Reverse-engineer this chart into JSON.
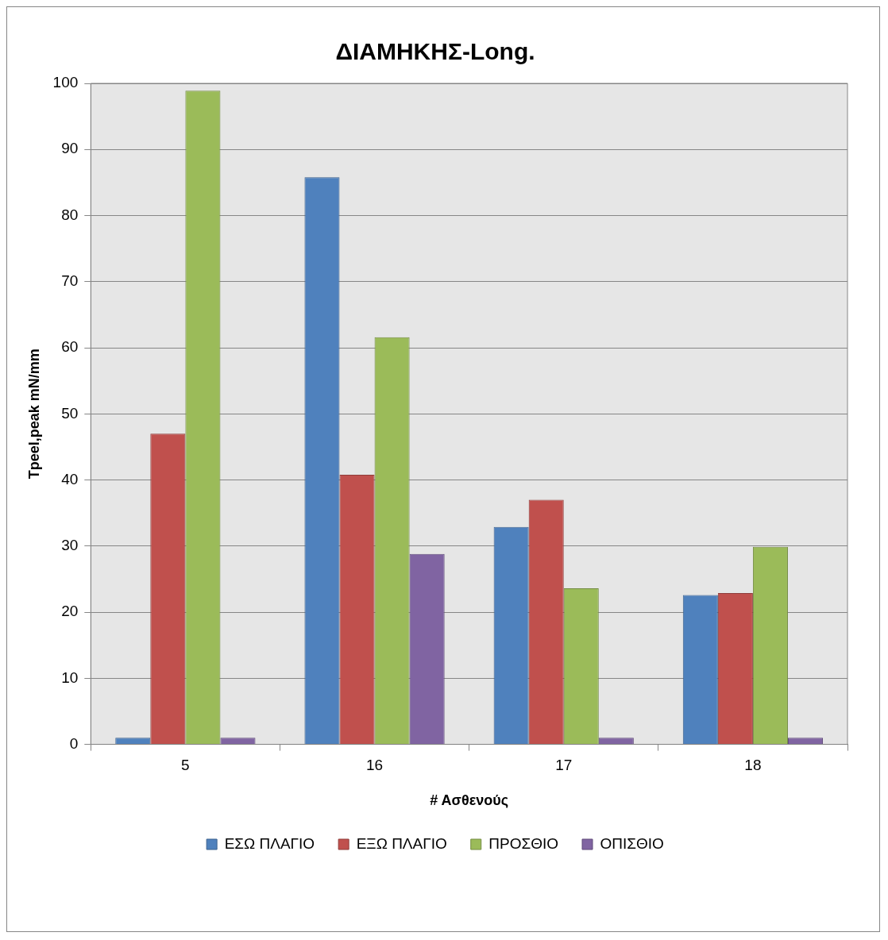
{
  "chart_data": {
    "type": "bar",
    "title": "ΔΙΑΜΗΚΗΣ-Long.",
    "xlabel": "# Ασθενούς",
    "ylabel": "Tpeel,peak mN/mm",
    "categories": [
      "5",
      "16",
      "17",
      "18"
    ],
    "series": [
      {
        "name": "ΕΣΩ ΠΛΑΓΙΟ",
        "color": "#4f81bd",
        "values": [
          1,
          85.8,
          32.9,
          22.6
        ]
      },
      {
        "name": "ΕΞΩ ΠΛΑΓΙΟ",
        "color": "#c0504d",
        "values": [
          47,
          40.8,
          37,
          22.9
        ]
      },
      {
        "name": "ΠΡΟΣΘΙΟ",
        "color": "#9bbb59",
        "values": [
          98.9,
          61.6,
          23.6,
          29.9
        ]
      },
      {
        "name": "ΟΠΙΣΘΙΟ",
        "color": "#8064a2",
        "values": [
          1,
          28.8,
          1,
          1
        ]
      }
    ],
    "ylim": [
      0,
      100
    ],
    "yticks": [
      0,
      10,
      20,
      30,
      40,
      50,
      60,
      70,
      80,
      90,
      100
    ],
    "grid": "y",
    "legend": "bottom"
  }
}
